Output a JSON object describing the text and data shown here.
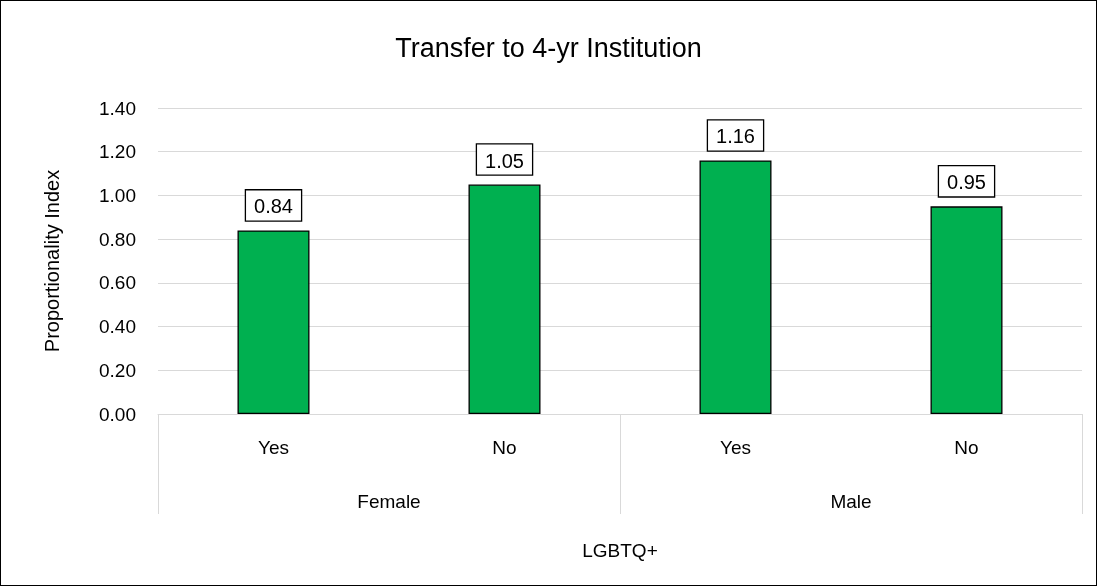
{
  "chart_data": {
    "type": "bar",
    "title": "Transfer to 4-yr Institution",
    "xlabel": "LGBTQ+",
    "ylabel": "Proportionality Index",
    "categories": [
      "Yes",
      "No",
      "Yes",
      "No"
    ],
    "values": [
      0.84,
      1.05,
      1.16,
      0.95
    ],
    "color": "#00b050",
    "annotations": [
      "Female",
      "Male"
    ],
    "ylim": [
      0,
      1.4
    ],
    "yticks": [
      {
        "value": 0,
        "label": "0.00"
      },
      {
        "value": 0.2,
        "label": "0.20"
      },
      {
        "value": 0.4,
        "label": "0.40"
      },
      {
        "value": 0.6,
        "label": "0.60"
      },
      {
        "value": 0.8,
        "label": "0.80"
      },
      {
        "value": 1,
        "label": "1.00"
      },
      {
        "value": 1.2,
        "label": "1.20"
      },
      {
        "value": 1.4,
        "label": "1.40"
      }
    ],
    "grid": true,
    "data_labels": true
  }
}
